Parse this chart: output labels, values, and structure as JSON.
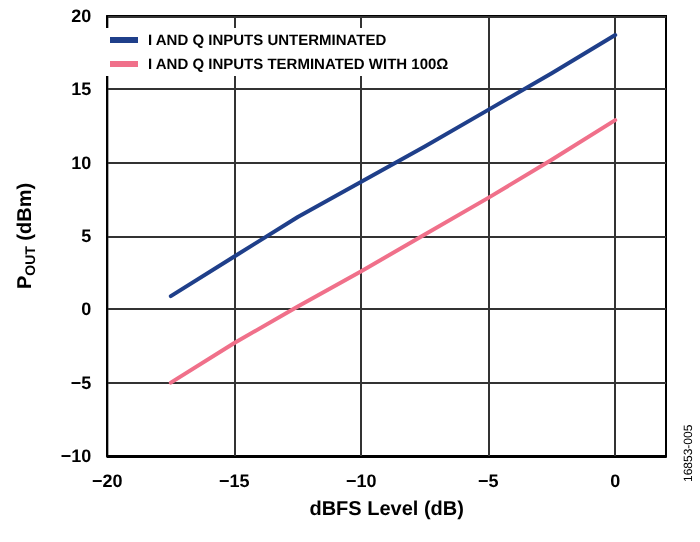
{
  "chart_data": {
    "type": "line",
    "xlabel": "dBFS Level (dB)",
    "ylabel": "P$_{OUT}$ (dBm)",
    "x": [
      -17.5,
      -15,
      -12.5,
      -10,
      -7.5,
      -5,
      -2.5,
      0
    ],
    "series": [
      {
        "name": "I AND Q INPUTS UNTERMINATED",
        "color": "#1f3f8a",
        "values": [
          0.9,
          3.6,
          6.3,
          8.7,
          11.1,
          13.6,
          16.1,
          18.7
        ]
      },
      {
        "name": "I AND Q INPUTS TERMINATED WITH 100Ω",
        "color": "#f0708a",
        "values": [
          -5,
          -2.3,
          0.2,
          2.6,
          5.1,
          7.6,
          10.2,
          12.9
        ]
      }
    ],
    "xlim": [
      -20,
      2
    ],
    "xticks": [
      -20,
      -15,
      -10,
      -5,
      0
    ],
    "ylim": [
      -10,
      20
    ],
    "yticks": [
      -10,
      -5,
      0,
      5,
      10,
      15,
      20
    ],
    "grid": true,
    "legend": "top left",
    "marker": "none",
    "line_style": "solid",
    "annotations": [
      "16853-005"
    ]
  }
}
